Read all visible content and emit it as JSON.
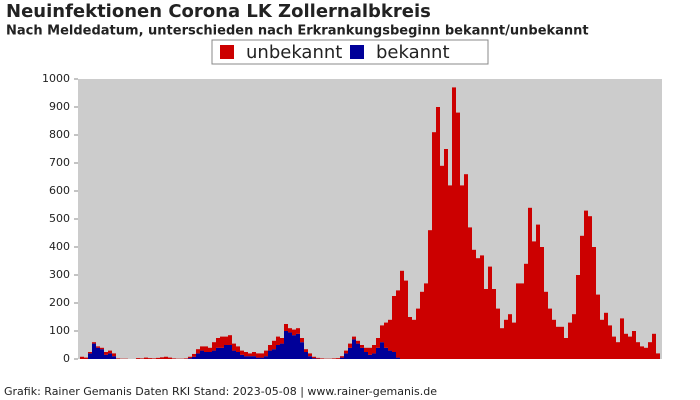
{
  "chart_data": {
    "type": "stacked-bar",
    "title": "Neuinfektionen Corona LK Zollernalbkreis",
    "subtitle": "Nach Meldedatum, unterschieden nach Erkrankungsbeginn bekannt/unbekannt",
    "footer": "Grafik: Rainer Gemanis Daten RKI Stand: 2023-05-08 | www.rainer-gemanis.de",
    "categories": [
      null,
      null,
      null,
      null,
      null,
      null,
      null,
      null,
      null,
      null,
      null,
      null,
      null,
      null,
      null,
      null,
      null,
      null,
      null,
      null,
      null,
      null,
      null,
      null,
      null,
      null,
      null,
      null,
      null,
      null,
      null,
      null,
      null,
      null,
      null,
      null,
      null,
      null,
      null,
      null,
      null,
      null,
      null,
      null,
      null,
      null,
      null,
      null,
      null,
      null,
      null,
      null,
      null,
      null,
      null,
      null,
      null,
      null,
      null,
      null,
      null,
      null,
      null,
      null,
      null,
      null,
      null,
      null,
      null,
      null,
      null,
      null,
      null,
      null,
      null,
      null,
      null,
      null,
      null,
      null,
      null,
      null,
      null,
      null,
      null,
      null,
      null,
      null,
      null,
      null,
      null,
      null,
      null,
      null,
      null,
      null,
      null,
      null,
      null,
      null,
      null,
      null,
      null,
      null,
      null,
      null,
      null,
      null,
      null,
      null,
      null,
      null,
      null,
      null,
      null,
      null,
      null,
      null,
      null,
      null,
      null,
      null,
      null,
      null,
      null,
      null,
      null,
      null,
      null,
      null,
      null,
      null,
      null,
      null,
      null,
      null,
      null,
      null,
      null,
      null,
      null,
      null,
      null,
      null,
      null
    ],
    "series": [
      {
        "name": "unbekannt",
        "color": "#cc0000",
        "values": [
          8,
          5,
          5,
          5,
          5,
          5,
          10,
          10,
          10,
          2,
          1,
          1,
          0,
          0,
          3,
          2,
          5,
          3,
          2,
          4,
          6,
          8,
          5,
          2,
          1,
          1,
          2,
          5,
          10,
          15,
          15,
          20,
          15,
          30,
          35,
          40,
          30,
          35,
          25,
          20,
          15,
          15,
          10,
          15,
          15,
          15,
          20,
          20,
          30,
          30,
          20,
          25,
          15,
          20,
          20,
          15,
          10,
          10,
          5,
          3,
          2,
          1,
          1,
          2,
          3,
          5,
          10,
          15,
          10,
          10,
          10,
          15,
          25,
          30,
          35,
          60,
          90,
          110,
          200,
          240,
          315,
          280,
          150,
          140,
          180,
          240,
          270,
          460,
          810,
          900,
          690,
          750,
          620,
          970,
          880,
          620,
          660,
          470,
          390,
          360,
          370,
          250,
          330,
          250,
          180,
          110,
          140,
          160,
          130,
          270,
          270,
          340,
          540,
          420,
          480,
          400,
          240,
          180,
          140,
          115,
          115,
          75,
          130,
          160,
          300,
          440,
          530,
          510,
          400,
          230,
          140,
          165,
          120,
          80,
          60,
          145,
          90,
          80,
          100,
          60,
          45,
          40,
          60,
          90,
          20
        ]
      },
      {
        "name": "bekannt",
        "color": "#000099",
        "values": [
          0,
          0,
          20,
          55,
          40,
          35,
          15,
          20,
          10,
          0,
          0,
          0,
          0,
          0,
          0,
          0,
          0,
          0,
          0,
          0,
          0,
          0,
          0,
          0,
          0,
          0,
          0,
          3,
          8,
          20,
          30,
          25,
          25,
          30,
          40,
          40,
          50,
          50,
          30,
          25,
          15,
          10,
          10,
          10,
          5,
          5,
          10,
          30,
          35,
          50,
          55,
          100,
          95,
          85,
          90,
          60,
          25,
          10,
          3,
          1,
          0,
          0,
          0,
          0,
          0,
          5,
          20,
          40,
          70,
          55,
          40,
          25,
          15,
          20,
          40,
          60,
          40,
          30,
          25,
          5,
          0,
          0,
          0,
          0,
          0,
          0,
          0,
          0,
          0,
          0,
          0,
          0,
          0,
          0,
          0,
          0,
          0,
          0,
          0,
          0,
          0,
          0,
          0,
          0,
          0,
          0,
          0,
          0,
          0,
          0,
          0,
          0,
          0,
          0,
          0,
          0,
          0,
          0,
          0,
          0,
          0,
          0,
          0,
          0,
          0,
          0,
          0,
          0,
          0,
          0,
          0,
          0,
          0,
          0,
          0,
          0,
          0,
          0,
          0,
          0,
          0,
          0,
          0,
          0,
          0
        ]
      }
    ],
    "ylim": [
      0,
      1000
    ],
    "yticks": [
      0,
      100,
      200,
      300,
      400,
      500,
      600,
      700,
      800,
      900,
      1000
    ],
    "grid": false,
    "legend": "top",
    "background": "#cccccc"
  }
}
